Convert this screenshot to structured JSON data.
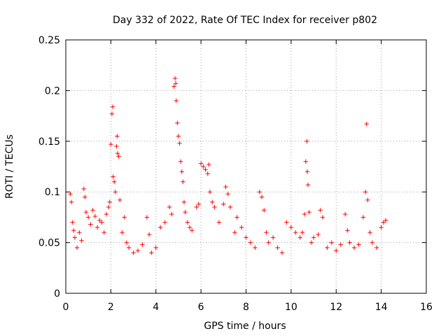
{
  "chart_data": {
    "type": "scatter",
    "title": "Day 332 of 2022, Rate Of TEC Index for receiver p802",
    "xlabel": "GPS time / hours",
    "ylabel": "ROTI / TECUs",
    "xlim": [
      0,
      16
    ],
    "ylim": [
      0,
      0.25
    ],
    "xticks": [
      "0",
      "2",
      "4",
      "6",
      "8",
      "10",
      "12",
      "14",
      "16"
    ],
    "yticks": [
      "0",
      "0.05",
      "0.1",
      "0.15",
      "0.2",
      "0.25"
    ],
    "grid": true,
    "marker": "plus",
    "color": "#ff0000",
    "series": [
      {
        "name": "ROTI",
        "points": [
          [
            0.2,
            0.098
          ],
          [
            0.25,
            0.09
          ],
          [
            0.3,
            0.07
          ],
          [
            0.35,
            0.062
          ],
          [
            0.4,
            0.055
          ],
          [
            0.5,
            0.045
          ],
          [
            0.6,
            0.06
          ],
          [
            0.7,
            0.052
          ],
          [
            0.8,
            0.103
          ],
          [
            0.85,
            0.095
          ],
          [
            0.9,
            0.08
          ],
          [
            1.0,
            0.075
          ],
          [
            1.1,
            0.068
          ],
          [
            1.2,
            0.082
          ],
          [
            1.3,
            0.076
          ],
          [
            1.4,
            0.065
          ],
          [
            1.5,
            0.072
          ],
          [
            1.6,
            0.07
          ],
          [
            1.7,
            0.06
          ],
          [
            1.8,
            0.078
          ],
          [
            1.9,
            0.085
          ],
          [
            1.95,
            0.09
          ],
          [
            2.0,
            0.147
          ],
          [
            2.05,
            0.177
          ],
          [
            2.08,
            0.184
          ],
          [
            2.1,
            0.115
          ],
          [
            2.15,
            0.11
          ],
          [
            2.2,
            0.1
          ],
          [
            2.25,
            0.145
          ],
          [
            2.28,
            0.155
          ],
          [
            2.3,
            0.138
          ],
          [
            2.35,
            0.135
          ],
          [
            2.4,
            0.092
          ],
          [
            2.5,
            0.06
          ],
          [
            2.6,
            0.075
          ],
          [
            2.7,
            0.05
          ],
          [
            2.8,
            0.045
          ],
          [
            3.0,
            0.04
          ],
          [
            3.2,
            0.042
          ],
          [
            3.4,
            0.048
          ],
          [
            3.6,
            0.075
          ],
          [
            3.7,
            0.058
          ],
          [
            3.8,
            0.04
          ],
          [
            4.0,
            0.045
          ],
          [
            4.2,
            0.065
          ],
          [
            4.4,
            0.07
          ],
          [
            4.6,
            0.085
          ],
          [
            4.7,
            0.078
          ],
          [
            4.8,
            0.204
          ],
          [
            4.85,
            0.212
          ],
          [
            4.88,
            0.207
          ],
          [
            4.9,
            0.19
          ],
          [
            4.95,
            0.168
          ],
          [
            5.0,
            0.155
          ],
          [
            5.05,
            0.148
          ],
          [
            5.1,
            0.13
          ],
          [
            5.15,
            0.12
          ],
          [
            5.2,
            0.11
          ],
          [
            5.25,
            0.09
          ],
          [
            5.3,
            0.08
          ],
          [
            5.4,
            0.07
          ],
          [
            5.5,
            0.065
          ],
          [
            5.6,
            0.062
          ],
          [
            5.8,
            0.085
          ],
          [
            5.9,
            0.088
          ],
          [
            6.0,
            0.128
          ],
          [
            6.1,
            0.125
          ],
          [
            6.2,
            0.122
          ],
          [
            6.3,
            0.118
          ],
          [
            6.35,
            0.127
          ],
          [
            6.4,
            0.1
          ],
          [
            6.5,
            0.09
          ],
          [
            6.6,
            0.085
          ],
          [
            6.8,
            0.07
          ],
          [
            7.0,
            0.088
          ],
          [
            7.1,
            0.105
          ],
          [
            7.2,
            0.098
          ],
          [
            7.3,
            0.085
          ],
          [
            7.5,
            0.06
          ],
          [
            7.6,
            0.075
          ],
          [
            7.8,
            0.065
          ],
          [
            8.0,
            0.055
          ],
          [
            8.2,
            0.05
          ],
          [
            8.4,
            0.045
          ],
          [
            8.6,
            0.1
          ],
          [
            8.7,
            0.095
          ],
          [
            8.8,
            0.082
          ],
          [
            8.9,
            0.06
          ],
          [
            9.0,
            0.05
          ],
          [
            9.2,
            0.055
          ],
          [
            9.4,
            0.045
          ],
          [
            9.6,
            0.04
          ],
          [
            9.8,
            0.07
          ],
          [
            10.0,
            0.065
          ],
          [
            10.2,
            0.06
          ],
          [
            10.4,
            0.055
          ],
          [
            10.5,
            0.06
          ],
          [
            10.6,
            0.078
          ],
          [
            10.65,
            0.13
          ],
          [
            10.7,
            0.15
          ],
          [
            10.72,
            0.12
          ],
          [
            10.75,
            0.107
          ],
          [
            10.8,
            0.08
          ],
          [
            10.9,
            0.05
          ],
          [
            11.0,
            0.055
          ],
          [
            11.2,
            0.058
          ],
          [
            11.3,
            0.082
          ],
          [
            11.4,
            0.075
          ],
          [
            11.6,
            0.045
          ],
          [
            11.8,
            0.05
          ],
          [
            12.0,
            0.042
          ],
          [
            12.2,
            0.048
          ],
          [
            12.4,
            0.078
          ],
          [
            12.5,
            0.062
          ],
          [
            12.6,
            0.05
          ],
          [
            12.8,
            0.045
          ],
          [
            13.0,
            0.048
          ],
          [
            13.2,
            0.075
          ],
          [
            13.3,
            0.1
          ],
          [
            13.35,
            0.167
          ],
          [
            13.4,
            0.092
          ],
          [
            13.5,
            0.06
          ],
          [
            13.6,
            0.05
          ],
          [
            13.8,
            0.045
          ],
          [
            14.0,
            0.065
          ],
          [
            14.1,
            0.07
          ],
          [
            14.2,
            0.072
          ]
        ]
      }
    ]
  }
}
